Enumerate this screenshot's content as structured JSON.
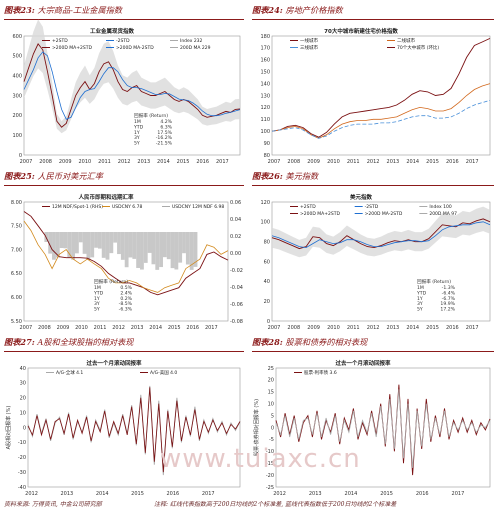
{
  "panels": [
    {
      "label": "图表23:",
      "title": "大宗商品-工业金属指数",
      "chart_data": {
        "type": "line",
        "title": "工业金属现货指数",
        "x_ticks": [
          "2007",
          "2008",
          "2009",
          "2010",
          "2011",
          "2012",
          "2013",
          "2014",
          "2015",
          "2016",
          "2017"
        ],
        "y_ticks": [
          "0",
          "100",
          "200",
          "300",
          "400",
          "500",
          "600"
        ],
        "ylim": [
          0,
          600
        ],
        "legend": [
          "+2STD",
          "-2STD",
          "Index 232",
          ">200D MA+2STD",
          ">200D MA-2STD",
          "200D MA 229"
        ],
        "stats_title": "回报率 (Return)",
        "stats": [
          [
            "1M",
            "4.2%"
          ],
          [
            "YTD",
            "6.3%"
          ],
          [
            "1Y",
            "17.5%"
          ],
          [
            "3Y",
            "-16.2%"
          ],
          [
            "5Y",
            "-21.5%"
          ]
        ],
        "series": [
          {
            "name": "Index",
            "color": "#7b1113",
            "values": [
              370,
              440,
              510,
              560,
              530,
              420,
              300,
              170,
              140,
              160,
              230,
              300,
              340,
              370,
              330,
              360,
              420,
              460,
              470,
              430,
              370,
              330,
              320,
              340,
              350,
              320,
              310,
              300,
              300,
              310,
              320,
              300,
              280,
              270,
              280,
              270,
              250,
              230,
              200,
              190,
              195,
              200,
              210,
              220,
              215,
              230,
              232
            ]
          },
          {
            "name": "200D MA",
            "color": "#1f6fd1",
            "values": [
              330,
              380,
              430,
              490,
              520,
              500,
              420,
              320,
              230,
              180,
              190,
              240,
              290,
              320,
              330,
              335,
              370,
              410,
              440,
              440,
              420,
              380,
              350,
              340,
              340,
              335,
              325,
              315,
              305,
              305,
              310,
              308,
              295,
              282,
              278,
              275,
              262,
              245,
              222,
              205,
              198,
              198,
              202,
              210,
              215,
              222,
              229
            ]
          }
        ]
      }
    },
    {
      "label": "图表24:",
      "title": "房地产价格指数",
      "chart_data": {
        "type": "line",
        "title": "70大中城市新建住宅价格指数",
        "x_ticks": [
          "2007",
          "2008",
          "2009",
          "2010",
          "2011",
          "2012",
          "2013",
          "2014",
          "2015",
          "2016",
          "2017"
        ],
        "y_ticks": [
          "80",
          "90",
          "100",
          "110",
          "120",
          "130",
          "140",
          "150",
          "160",
          "170",
          "180"
        ],
        "ylim": [
          80,
          180
        ],
        "legend": [
          "一线城市",
          "二线城市",
          "三线城市",
          "70个大中城市 (环比)"
        ],
        "series": [
          {
            "name": "一线城市",
            "color": "#7b1113",
            "dash": "",
            "values": [
              100,
              101,
              104,
              105,
              103,
              98,
              95,
              99,
              106,
              112,
              115,
              116,
              117,
              118,
              119,
              120,
              122,
              126,
              131,
              134,
              133,
              130,
              131,
              136,
              148,
              162,
              172,
              175,
              178
            ]
          },
          {
            "name": "二线城市",
            "color": "#d2691e",
            "dash": "",
            "values": [
              100,
              101,
              103,
              104,
              102,
              97,
              94,
              97,
              102,
              106,
              108,
              109,
              109,
              110,
              110,
              111,
              112,
              115,
              118,
              120,
              119,
              117,
              117,
              119,
              124,
              130,
              135,
              138,
              140
            ]
          },
          {
            "name": "三线城市",
            "color": "#4a90d9",
            "dash": "4 2",
            "values": [
              100,
              101,
              102,
              103,
              101,
              97,
              94,
              96,
              100,
              103,
              105,
              106,
              106,
              106,
              107,
              107,
              108,
              110,
              112,
              113,
              113,
              111,
              111,
              112,
              115,
              119,
              122,
              124,
              126
            ]
          }
        ]
      }
    },
    {
      "label": "图表25:",
      "title": "人民币对美元汇率",
      "chart_data": {
        "type": "line",
        "title": "人民币即期和远期汇率",
        "x_ticks": [
          "2007",
          "2008",
          "2009",
          "2010",
          "2011",
          "2012",
          "2013",
          "2014",
          "2015",
          "2016",
          "2017"
        ],
        "y_ticks": [
          "5.50",
          "6.00",
          "6.50",
          "7.00",
          "7.50",
          "8.00"
        ],
        "ylim": [
          5.5,
          8.0
        ],
        "y2_ticks": [
          "-0.08",
          "-0.06",
          "-0.04",
          "-0.02",
          "0.00",
          "0.02",
          "0.04",
          "0.06"
        ],
        "y2lim": [
          -0.08,
          0.06
        ],
        "legend": [
          "12M NDF/Spot-1 (RHS)",
          "USDCNY 6.78",
          "USDCNY 12M NDF 6.98"
        ],
        "stats_title": "回报率 (Return)",
        "stats": [
          [
            "1M",
            "0.5%"
          ],
          [
            "YTD",
            "2.4%"
          ],
          [
            "1Y",
            "0.2%"
          ],
          [
            "3Y",
            "-8.5%"
          ],
          [
            "5Y",
            "-6.3%"
          ]
        ],
        "series": [
          {
            "name": "USDCNY",
            "color": "#7b1113",
            "values": [
              7.8,
              7.7,
              7.5,
              7.3,
              7.0,
              6.85,
              6.83,
              6.83,
              6.83,
              6.82,
              6.75,
              6.65,
              6.5,
              6.4,
              6.3,
              6.3,
              6.25,
              6.2,
              6.1,
              6.05,
              6.1,
              6.15,
              6.2,
              6.4,
              6.5,
              6.6,
              6.9,
              6.95,
              6.85,
              6.78
            ]
          },
          {
            "name": "USDCNY 12M NDF",
            "color": "#d28a1e",
            "values": [
              7.6,
              7.4,
              7.1,
              6.9,
              6.6,
              6.9,
              7.0,
              6.8,
              6.7,
              6.8,
              6.7,
              6.6,
              6.4,
              6.3,
              6.3,
              6.35,
              6.3,
              6.2,
              6.15,
              6.1,
              6.2,
              6.25,
              6.3,
              6.6,
              6.7,
              6.8,
              7.1,
              7.05,
              6.9,
              6.98
            ]
          }
        ]
      }
    },
    {
      "label": "图表26:",
      "title": "美元指数",
      "chart_data": {
        "type": "line",
        "title": "美元指数",
        "x_ticks": [
          "2007",
          "2008",
          "2009",
          "2010",
          "2011",
          "2012",
          "2013",
          "2014",
          "2015",
          "2016",
          "2017"
        ],
        "y_ticks": [
          "0",
          "20",
          "40",
          "60",
          "80",
          "100",
          "120"
        ],
        "ylim": [
          0,
          120
        ],
        "legend": [
          "+2STD",
          "-2STD",
          "Index 100",
          ">200D MA+2STD",
          ">200D MA-2STD",
          "200D MA 97"
        ],
        "stats_title": "回报率 (Return)",
        "stats": [
          [
            "1M",
            "-1.3%"
          ],
          [
            "YTD",
            "-6.4%"
          ],
          [
            "1Y",
            "-6.7%"
          ],
          [
            "3Y",
            "19.9%"
          ],
          [
            "5Y",
            "17.2%"
          ]
        ],
        "series": [
          {
            "name": "Index",
            "color": "#7b1113",
            "values": [
              84,
              82,
              79,
              76,
              73,
              75,
              85,
              84,
              78,
              76,
              80,
              86,
              82,
              78,
              75,
              74,
              76,
              79,
              81,
              80,
              82,
              80,
              80,
              83,
              90,
              97,
              96,
              95,
              99,
              98,
              101,
              103,
              100
            ]
          },
          {
            "name": "200D MA",
            "color": "#1f6fd1",
            "values": [
              86,
              84,
              81,
              78,
              75,
              74,
              78,
              82,
              80,
              78,
              79,
              82,
              82,
              80,
              77,
              75,
              75,
              77,
              79,
              80,
              81,
              81,
              80,
              81,
              86,
              92,
              95,
              96,
              97,
              97,
              99,
              100,
              97
            ]
          }
        ]
      }
    },
    {
      "label": "图表27:",
      "title": "A股和全球股指的相对表现",
      "chart_data": {
        "type": "line",
        "title": "过去一个月滚动回报率",
        "ylabel": "A股相对回报率 (%)",
        "x_ticks": [
          "2012",
          "2013",
          "2014",
          "2015",
          "2016",
          "2017"
        ],
        "y_ticks": [
          "-40",
          "-30",
          "-20",
          "-10",
          "0",
          "10",
          "20",
          "30",
          "40"
        ],
        "ylim": [
          -40,
          40
        ],
        "legend": [
          "A/G-全球 4.1",
          "A/G-美国 4.0"
        ],
        "series": [
          {
            "name": "A/G-全球",
            "color": "#a9a9a9",
            "values": [
              2,
              -6,
              9,
              -4,
              6,
              -9,
              3,
              7,
              -5,
              10,
              -8,
              4,
              -3,
              8,
              -10,
              5,
              -2,
              12,
              -7,
              3,
              -5,
              9,
              -4,
              15,
              -12,
              22,
              -18,
              28,
              -25,
              18,
              -32,
              12,
              -14,
              20,
              -10,
              8,
              -6,
              14,
              -9,
              5,
              -4,
              6,
              -3,
              4,
              -5,
              3,
              -2,
              4
            ]
          },
          {
            "name": "A/G-美国",
            "color": "#7b1113",
            "values": [
              1,
              -5,
              8,
              -5,
              5,
              -8,
              4,
              6,
              -4,
              9,
              -7,
              5,
              -4,
              7,
              -9,
              4,
              -3,
              11,
              -6,
              4,
              -4,
              8,
              -5,
              14,
              -11,
              20,
              -17,
              27,
              -23,
              16,
              -30,
              11,
              -13,
              18,
              -9,
              7,
              -5,
              12,
              -8,
              4,
              -3,
              5,
              -2,
              3,
              -4,
              2,
              -1,
              4
            ]
          }
        ]
      }
    },
    {
      "label": "图表28:",
      "title": "股票和债券的相对表现",
      "chart_data": {
        "type": "line",
        "title": "过去一个月滚动回报率",
        "ylabel": "股票-债券相对回报率 (%)",
        "x_ticks": [
          "2012",
          "2013",
          "2014",
          "2015",
          "2016",
          "2017"
        ],
        "y_ticks": [
          "-25",
          "-20",
          "-15",
          "-10",
          "-5",
          "0",
          "5",
          "10",
          "15",
          "20",
          "25"
        ],
        "ylim": [
          -25,
          25
        ],
        "legend": [
          "股票-利率债 3.6"
        ],
        "series": [
          {
            "name": "股票-利率债",
            "color": "#7b1113",
            "values": [
              3,
              -4,
              6,
              -3,
              5,
              -6,
              2,
              5,
              -4,
              7,
              -5,
              3,
              -2,
              6,
              -7,
              4,
              -1,
              8,
              -5,
              2,
              -3,
              7,
              -3,
              10,
              -8,
              14,
              -10,
              18,
              -15,
              12,
              -20,
              8,
              -9,
              12,
              -6,
              5,
              -4,
              8,
              -5,
              3,
              -2,
              4,
              -2,
              3,
              -3,
              2,
              -1,
              3.6
            ]
          },
          {
            "name": "股票-利率债 (gray)",
            "color": "#a9a9a9",
            "values": [
              2,
              -3,
              5,
              -4,
              4,
              -5,
              3,
              4,
              -3,
              6,
              -4,
              4,
              -3,
              5,
              -6,
              3,
              -2,
              7,
              -4,
              3,
              -2,
              6,
              -4,
              9,
              -7,
              12,
              -9,
              16,
              -13,
              10,
              -17,
              7,
              -8,
              10,
              -5,
              4,
              -3,
              7,
              -4,
              2,
              -1,
              3,
              -1,
              2,
              -2,
              1,
              0,
              3
            ]
          }
        ]
      }
    }
  ],
  "footer": {
    "source": "资料来源: 万得资讯, 中金公司研究部",
    "note": "注释: 红线代表指数高于200日均线的2个标准差, 蓝线代表指数低于200日均线的2个标准差"
  },
  "watermark": "www.tuiaxc.cn"
}
